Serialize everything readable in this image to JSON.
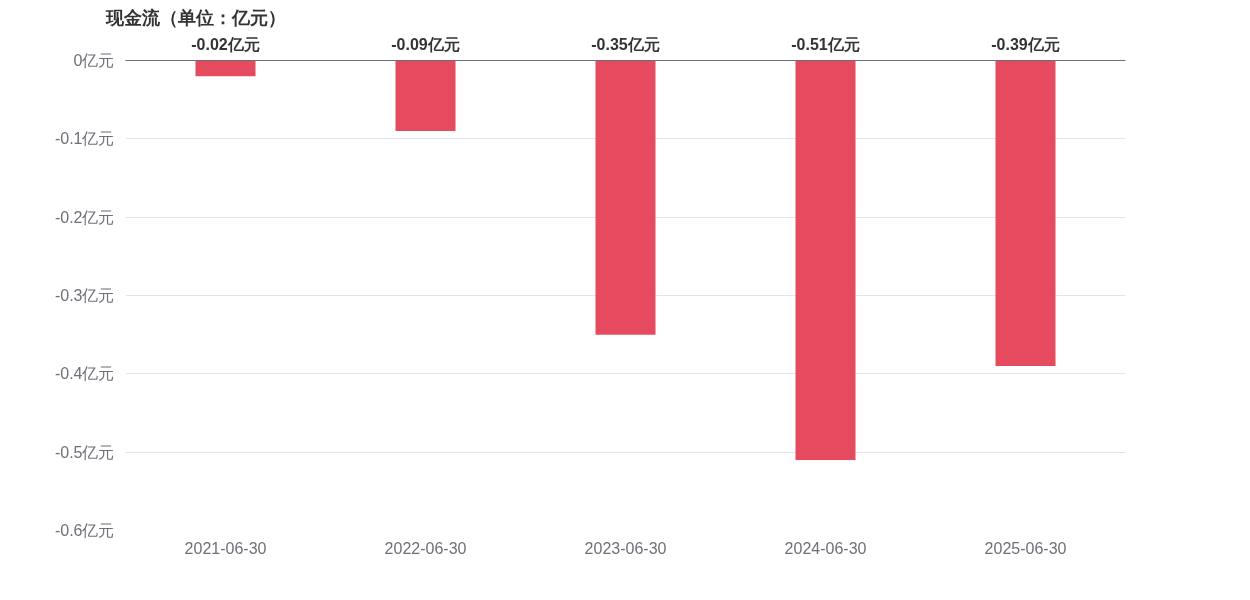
{
  "chart_data": {
    "type": "bar",
    "title": "现金流（单位：亿元）",
    "categories": [
      "2021-06-30",
      "2022-06-30",
      "2023-06-30",
      "2024-06-30",
      "2025-06-30"
    ],
    "values": [
      -0.02,
      -0.09,
      -0.35,
      -0.51,
      -0.39
    ],
    "value_labels": [
      "-0.02亿元",
      "-0.09亿元",
      "-0.35亿元",
      "-0.51亿元",
      "-0.39亿元"
    ],
    "color": "#e64a5f",
    "ylim": [
      -0.6,
      0
    ],
    "yticks": [
      {
        "value": 0,
        "label": "0亿元"
      },
      {
        "value": -0.1,
        "label": "-0.1亿元"
      },
      {
        "value": -0.2,
        "label": "-0.2亿元"
      },
      {
        "value": -0.3,
        "label": "-0.3亿元"
      },
      {
        "value": -0.4,
        "label": "-0.4亿元"
      },
      {
        "value": -0.5,
        "label": "-0.5亿元"
      },
      {
        "value": -0.6,
        "label": "-0.6亿元"
      }
    ],
    "grid": "y"
  }
}
